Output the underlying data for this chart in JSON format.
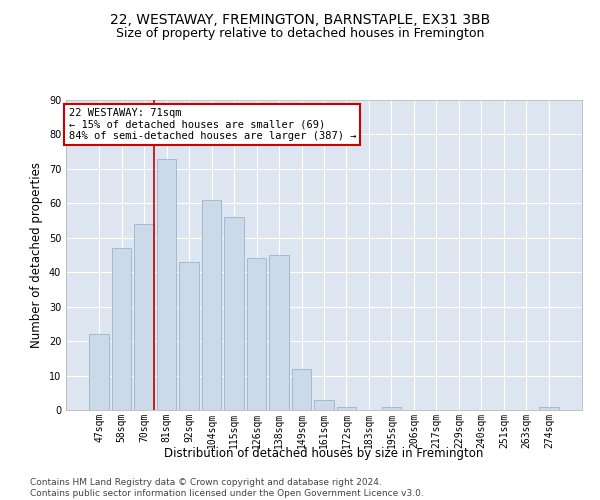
{
  "title": "22, WESTAWAY, FREMINGTON, BARNSTAPLE, EX31 3BB",
  "subtitle": "Size of property relative to detached houses in Fremington",
  "xlabel": "Distribution of detached houses by size in Fremington",
  "ylabel": "Number of detached properties",
  "categories": [
    "47sqm",
    "58sqm",
    "70sqm",
    "81sqm",
    "92sqm",
    "104sqm",
    "115sqm",
    "126sqm",
    "138sqm",
    "149sqm",
    "161sqm",
    "172sqm",
    "183sqm",
    "195sqm",
    "206sqm",
    "217sqm",
    "229sqm",
    "240sqm",
    "251sqm",
    "263sqm",
    "274sqm"
  ],
  "values": [
    22,
    47,
    54,
    73,
    43,
    61,
    56,
    44,
    45,
    12,
    3,
    1,
    0,
    1,
    0,
    0,
    0,
    0,
    0,
    0,
    1
  ],
  "bar_color": "#ccd9e8",
  "bar_edgecolor": "#9ab4cc",
  "vline_index": 2,
  "vline_color": "#cc0000",
  "annotation_box_text": "22 WESTAWAY: 71sqm\n← 15% of detached houses are smaller (69)\n84% of semi-detached houses are larger (387) →",
  "ylim": [
    0,
    90
  ],
  "yticks": [
    0,
    10,
    20,
    30,
    40,
    50,
    60,
    70,
    80,
    90
  ],
  "background_color": "#dde6f0",
  "grid_color": "#ffffff",
  "footer": "Contains HM Land Registry data © Crown copyright and database right 2024.\nContains public sector information licensed under the Open Government Licence v3.0.",
  "title_fontsize": 10,
  "subtitle_fontsize": 9,
  "xlabel_fontsize": 8.5,
  "ylabel_fontsize": 8.5,
  "tick_fontsize": 7,
  "footer_fontsize": 6.5
}
